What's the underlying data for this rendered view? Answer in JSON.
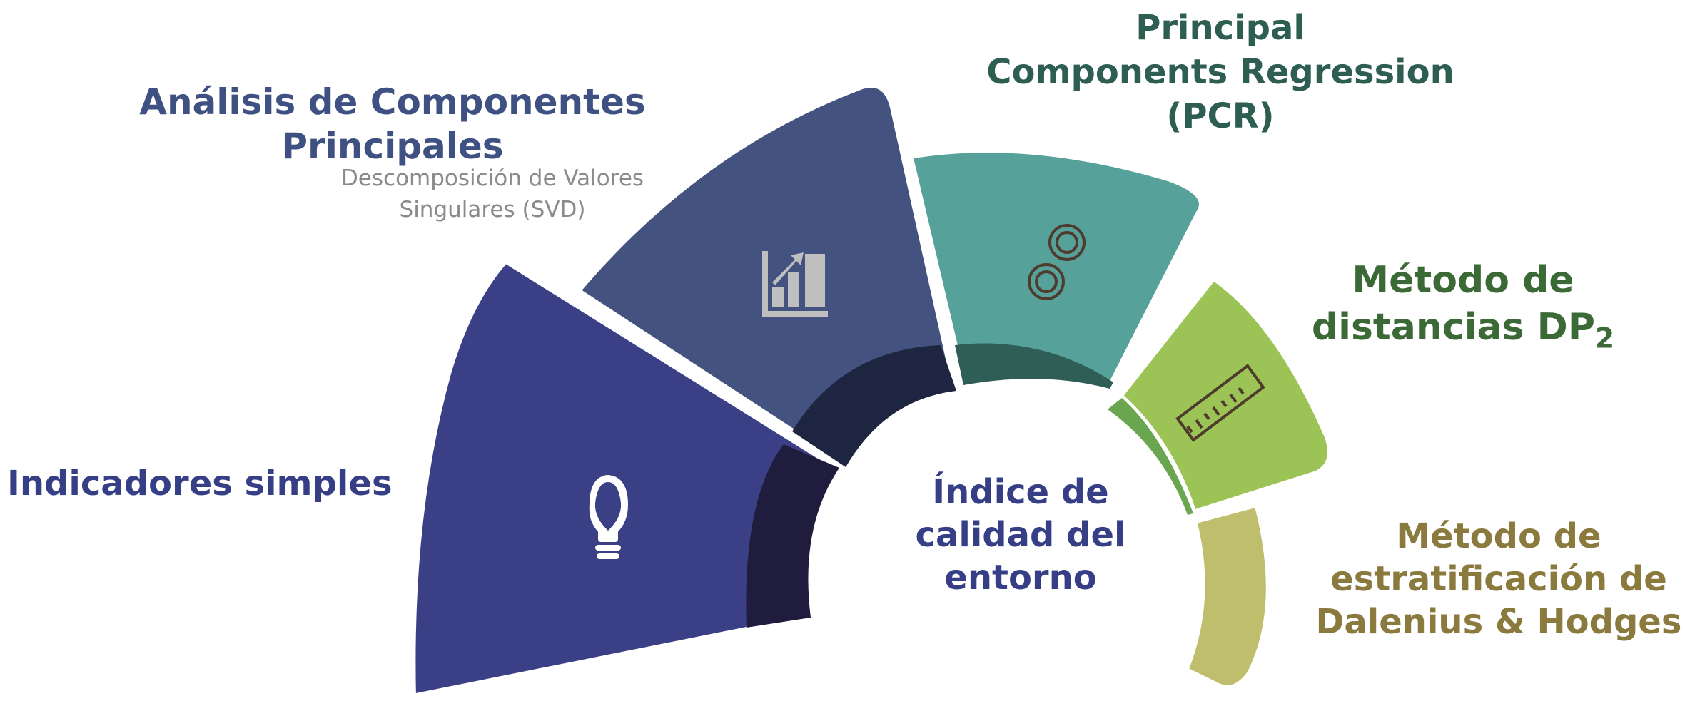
{
  "center": {
    "lines": [
      "Índice de",
      "calidad del",
      "entorno"
    ]
  },
  "segments": [
    {
      "id": "indicadores",
      "title": "Indicadores simples",
      "icon": "lightbulb-icon",
      "color": "#3a3f86",
      "inner_color": "#201c3e"
    },
    {
      "id": "pca",
      "title_lines": [
        "Análisis de Componentes",
        "Principales"
      ],
      "subtitle_lines": [
        "Descomposición de Valores",
        "Singulares (SVD)"
      ],
      "icon": "bar-chart-icon",
      "color": "#43527f",
      "inner_color": "#1e2540"
    },
    {
      "id": "pcr",
      "title_lines": [
        "Principal",
        "Components Regression",
        "(PCR)"
      ],
      "icon": "gears-icon",
      "color": "#56a19a",
      "inner_color": "#2f5e57"
    },
    {
      "id": "dp2",
      "title_lines": [
        "Método de",
        "distancias DP"
      ],
      "title_subscript": "2",
      "icon": "ruler-icon",
      "color": "#9cc355",
      "inner_color": "#69a64f"
    },
    {
      "id": "dalenius",
      "title_lines": [
        "Método de",
        "estratificación de",
        "Dalenius & Hodges"
      ],
      "color": "#bfbe6c"
    }
  ]
}
